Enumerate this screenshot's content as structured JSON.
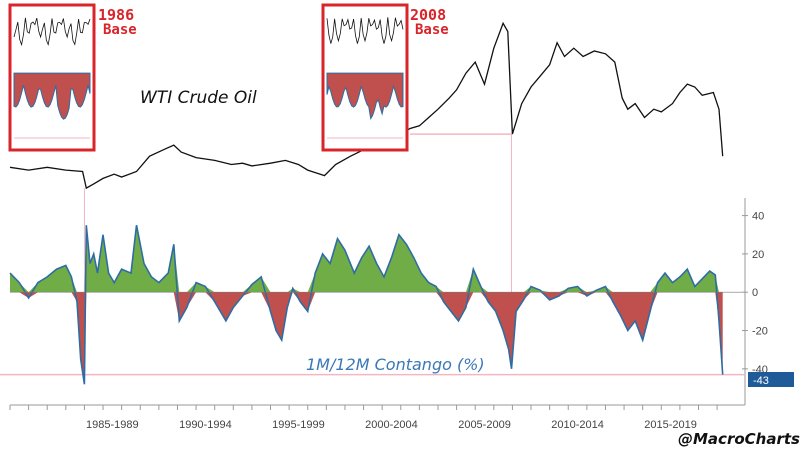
{
  "chart_data": [
    {
      "type": "line",
      "title": "WTI Crude Oil",
      "series": [
        {
          "name": "WTI Crude Oil",
          "x": [
            1982,
            1983,
            1984,
            1985,
            1985.9,
            1986.1,
            1986.5,
            1987,
            1987.6,
            1988,
            1988.8,
            1989.5,
            1990.3,
            1990.8,
            1991.2,
            1992,
            1993,
            1993.9,
            1994.5,
            1995,
            1996,
            1996.8,
            1997.5,
            1998,
            1998.9,
            1999.5,
            2000.3,
            2000.9,
            2001.5,
            2001.9,
            2002.5,
            2003,
            2003.5,
            2004,
            2004.5,
            2005,
            2005.6,
            2006,
            2006.5,
            2007,
            2007.5,
            2008,
            2008.5,
            2008.75,
            2009,
            2009.5,
            2010,
            2010.5,
            2011,
            2011.4,
            2011.8,
            2012.3,
            2012.8,
            2013.4,
            2014,
            2014.5,
            2014.9,
            2015.2,
            2015.6,
            2016.1,
            2016.6,
            2017,
            2017.6,
            2018,
            2018.4,
            2018.8,
            2019.2,
            2019.8,
            2020.1,
            2020.3
          ],
          "y": [
            50,
            48,
            50,
            48,
            47,
            35,
            38,
            42,
            45,
            43,
            47,
            58,
            63,
            66,
            61,
            57,
            55,
            52,
            53,
            51,
            53,
            55,
            52,
            48,
            44,
            52,
            58,
            62,
            66,
            63,
            70,
            74,
            78,
            80,
            86,
            92,
            100,
            106,
            118,
            126,
            110,
            136,
            154,
            148,
            74,
            96,
            108,
            116,
            124,
            140,
            130,
            136,
            130,
            134,
            132,
            126,
            100,
            92,
            96,
            86,
            92,
            90,
            96,
            104,
            110,
            108,
            102,
            104,
            92,
            58
          ]
        }
      ],
      "annotations": [
        {
          "label": "1986",
          "sublabel": "Base"
        },
        {
          "label": "2008",
          "sublabel": "Base"
        }
      ]
    },
    {
      "type": "area",
      "title": "1M/12M Contango (%)",
      "x_tick_labels": [
        "1985-1989",
        "1990-1994",
        "1995-1999",
        "2000-2004",
        "2005-2009",
        "2010-2014",
        "2015-2019"
      ],
      "x_range": [
        1982,
        2020.8
      ],
      "ylim": [
        -50,
        45
      ],
      "y_ticks": [
        40,
        20,
        0,
        -20,
        -40
      ],
      "current_value_label": "-43",
      "fill_positive": "#70ad47",
      "fill_negative": "#c0504d",
      "line_color": "#2e6da4",
      "series": [
        {
          "name": "1M/12M Contango (%)",
          "x": [
            1982,
            1982.5,
            1983,
            1983.5,
            1984,
            1984.5,
            1985,
            1985.3,
            1985.6,
            1985.8,
            1986.0,
            1986.1,
            1986.3,
            1986.5,
            1986.7,
            1987,
            1987.3,
            1987.6,
            1988,
            1988.5,
            1988.8,
            1989.2,
            1989.6,
            1990,
            1990.5,
            1990.8,
            1991.1,
            1991.5,
            1992,
            1992.5,
            1993,
            1993.3,
            1993.6,
            1994,
            1994.5,
            1995,
            1995.5,
            1996,
            1996.3,
            1996.6,
            1996.9,
            1997.2,
            1997.6,
            1998,
            1998.4,
            1998.8,
            1999.2,
            1999.6,
            2000,
            2000.5,
            2000.9,
            2001.3,
            2001.7,
            2002.1,
            2002.5,
            2002.9,
            2003.3,
            2003.7,
            2004.1,
            2004.5,
            2004.9,
            2005.3,
            2005.7,
            2006.1,
            2006.5,
            2006.9,
            2007.3,
            2007.7,
            2008.1,
            2008.5,
            2008.8,
            2008.95,
            2009.2,
            2009.6,
            2010,
            2010.5,
            2011,
            2011.5,
            2012,
            2012.5,
            2013,
            2013.5,
            2014,
            2014.4,
            2014.8,
            2015.2,
            2015.6,
            2016,
            2016.4,
            2016.8,
            2017.2,
            2017.6,
            2018,
            2018.4,
            2018.8,
            2019.2,
            2019.6,
            2019.9,
            2020.1,
            2020.3
          ],
          "y": [
            10,
            5,
            -3,
            5,
            8,
            12,
            14,
            8,
            -5,
            -35,
            -48,
            35,
            15,
            20,
            10,
            30,
            10,
            5,
            12,
            10,
            35,
            15,
            8,
            5,
            10,
            25,
            -15,
            -8,
            5,
            3,
            -5,
            -10,
            -15,
            -8,
            -2,
            4,
            8,
            -10,
            -20,
            -25,
            -8,
            2,
            -5,
            -10,
            10,
            20,
            15,
            28,
            22,
            10,
            18,
            24,
            15,
            8,
            18,
            30,
            25,
            18,
            10,
            5,
            3,
            -5,
            -10,
            -15,
            -8,
            12,
            3,
            -5,
            -10,
            -20,
            -30,
            -40,
            -10,
            -4,
            3,
            1,
            -4,
            -2,
            2,
            3,
            -2,
            1,
            3,
            -5,
            -12,
            -20,
            -15,
            -25,
            -10,
            5,
            10,
            5,
            8,
            12,
            3,
            7,
            11,
            9,
            -15,
            -43
          ]
        }
      ]
    }
  ],
  "labels": {
    "wti_title": "WTI Crude Oil",
    "contango_title": "1M/12M Contango (%)",
    "base1_year": "1986",
    "base1_word": "Base",
    "base2_year": "2008",
    "base2_word": "Base",
    "handle": "@MacroCharts",
    "current_value": "-43"
  },
  "colors": {
    "oil_line": "#111111",
    "contango_line": "#2e6da4",
    "positive_fill": "#70ad47",
    "negative_fill": "#c0504d",
    "box_border": "#d9242a",
    "guide_line": "#f4b6c2",
    "value_badge": "#1f5b99"
  }
}
